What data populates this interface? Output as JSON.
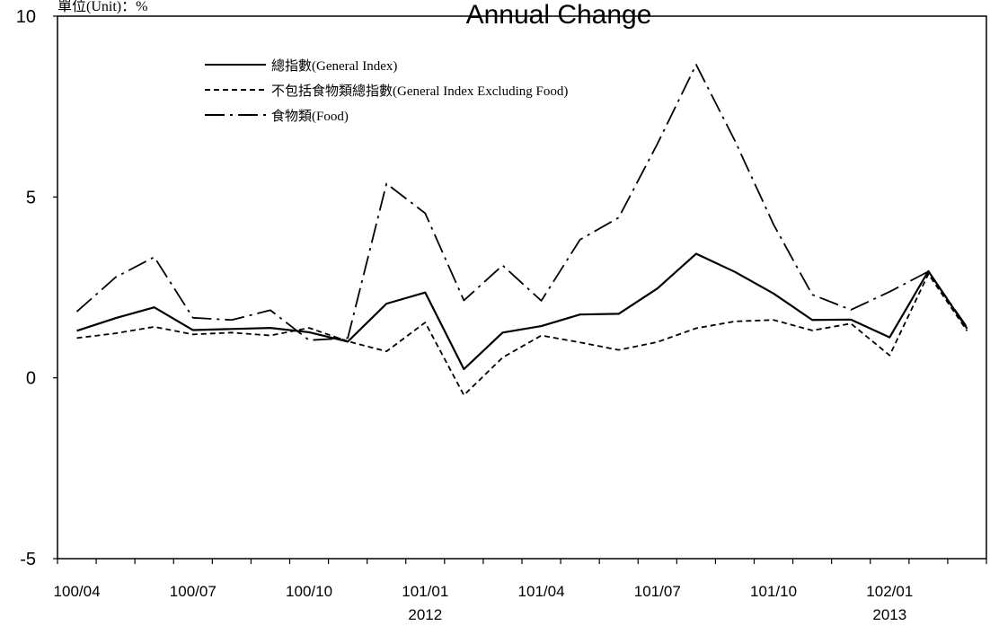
{
  "chart_data": {
    "type": "line",
    "title": "Annual Change",
    "unit_label": "單位(Unit)：%",
    "categories": [
      "100/04",
      "100/05",
      "100/06",
      "100/07",
      "100/08",
      "100/09",
      "100/10",
      "100/11",
      "100/12",
      "101/01",
      "101/02",
      "101/03",
      "101/04",
      "101/05",
      "101/06",
      "101/07",
      "101/08",
      "101/09",
      "101/10",
      "101/11",
      "101/12",
      "102/01",
      "102/02",
      "102/03"
    ],
    "x_tick_labels": [
      {
        "label": "100/04",
        "sub": ""
      },
      {
        "label": "100/07",
        "sub": ""
      },
      {
        "label": "100/10",
        "sub": ""
      },
      {
        "label": "101/01",
        "sub": "2012"
      },
      {
        "label": "101/04",
        "sub": ""
      },
      {
        "label": "101/07",
        "sub": ""
      },
      {
        "label": "101/10",
        "sub": ""
      },
      {
        "label": "102/01",
        "sub": "2013"
      }
    ],
    "ylim": [
      -5,
      10
    ],
    "yticks": [
      -5,
      0,
      5,
      10
    ],
    "legend_position": "top-left",
    "series": [
      {
        "name": "總指數(General Index)",
        "style": "solid",
        "values": [
          1.3,
          1.65,
          1.95,
          1.32,
          1.35,
          1.38,
          1.26,
          1.0,
          2.05,
          2.36,
          0.24,
          1.25,
          1.43,
          1.75,
          1.77,
          2.47,
          3.43,
          2.93,
          2.33,
          1.6,
          1.61,
          1.12,
          2.95,
          1.36
        ]
      },
      {
        "name": "不包括食物類總指數(General Index Excluding Food)",
        "style": "dashed",
        "values": [
          1.1,
          1.23,
          1.41,
          1.2,
          1.25,
          1.17,
          1.38,
          1.01,
          0.73,
          1.53,
          -0.48,
          0.56,
          1.17,
          0.98,
          0.77,
          0.99,
          1.37,
          1.56,
          1.6,
          1.31,
          1.5,
          0.62,
          2.87,
          1.3
        ]
      },
      {
        "name": "食物類(Food)",
        "style": "dashdot",
        "values": [
          1.83,
          2.78,
          3.34,
          1.66,
          1.6,
          1.87,
          1.04,
          1.1,
          5.37,
          4.55,
          2.14,
          3.11,
          2.13,
          3.82,
          4.43,
          6.47,
          8.66,
          6.56,
          4.24,
          2.3,
          1.88,
          2.38,
          2.94,
          1.4
        ]
      }
    ]
  }
}
